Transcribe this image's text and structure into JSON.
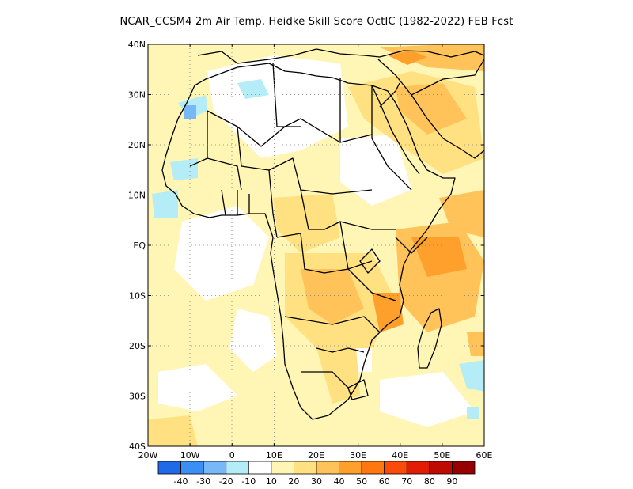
{
  "title": "NCAR_CCSM4  2m Air Temp. Heidke Skill Score OctIC (1982-2022) FEB Fcst",
  "lat_labels": [
    "40N",
    "30N",
    "20N",
    "10N",
    "EQ",
    "10S",
    "20S",
    "30S",
    "40S"
  ],
  "lon_labels": [
    "20W",
    "10W",
    "0",
    "10E",
    "20E",
    "30E",
    "40E",
    "50E",
    "60E"
  ],
  "legend": {
    "colors": [
      "#1e6ae8",
      "#3c8ff2",
      "#78b8f8",
      "#b4ecf8",
      "#ffffff",
      "#fff5b4",
      "#ffe182",
      "#ffc35a",
      "#ffa02d",
      "#ff780f",
      "#fa4b0a",
      "#e11e05",
      "#be0a00",
      "#960000"
    ],
    "labels": [
      "-40",
      "-30",
      "-20",
      "-10",
      "10",
      "20",
      "30",
      "40",
      "50",
      "60",
      "70",
      "80",
      "90"
    ]
  }
}
